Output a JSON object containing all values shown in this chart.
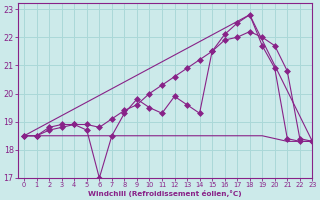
{
  "bg_color": "#cceaea",
  "grid_color": "#aad8d8",
  "line_color": "#882288",
  "title": "Windchill (Refroidissement éolien,°C)",
  "xlim": [
    -0.5,
    23
  ],
  "ylim": [
    17,
    23.2
  ],
  "yticks": [
    17,
    18,
    19,
    20,
    21,
    22,
    23
  ],
  "xticks": [
    0,
    1,
    2,
    3,
    4,
    5,
    6,
    7,
    8,
    9,
    10,
    11,
    12,
    13,
    14,
    15,
    16,
    17,
    18,
    19,
    20,
    21,
    22,
    23
  ],
  "series": [
    {
      "x": [
        0,
        1,
        2,
        3,
        4,
        5,
        6,
        7,
        8,
        9,
        10,
        11,
        12,
        13,
        14,
        15,
        16,
        17,
        18,
        19,
        20,
        21,
        22,
        23
      ],
      "y": [
        18.5,
        18.5,
        18.8,
        18.9,
        18.9,
        18.7,
        17.0,
        18.5,
        19.3,
        19.8,
        19.5,
        19.3,
        19.9,
        19.6,
        19.3,
        21.5,
        22.1,
        22.5,
        22.8,
        21.7,
        20.9,
        18.4,
        18.3,
        18.3
      ],
      "marker": "D",
      "markersize": 3
    },
    {
      "x": [
        0,
        1,
        2,
        3,
        4,
        5,
        6,
        7,
        8,
        9,
        10,
        11,
        12,
        13,
        14,
        15,
        16,
        17,
        18,
        19,
        20,
        21,
        22,
        23
      ],
      "y": [
        18.5,
        18.5,
        18.5,
        18.5,
        18.5,
        18.5,
        18.5,
        18.5,
        18.5,
        18.5,
        18.5,
        18.5,
        18.5,
        18.5,
        18.5,
        18.5,
        18.5,
        18.5,
        18.5,
        18.5,
        18.4,
        18.3,
        18.3,
        18.3
      ],
      "marker": null,
      "markersize": 0
    },
    {
      "x": [
        0,
        1,
        2,
        3,
        4,
        5,
        6,
        7,
        8,
        9,
        10,
        11,
        12,
        13,
        14,
        15,
        16,
        17,
        18,
        19,
        20,
        21,
        22,
        23
      ],
      "y": [
        18.5,
        18.5,
        18.7,
        18.8,
        18.9,
        18.9,
        18.8,
        19.1,
        19.4,
        19.6,
        20.0,
        20.3,
        20.6,
        20.9,
        21.2,
        21.5,
        21.9,
        22.0,
        22.2,
        22.0,
        21.7,
        20.8,
        18.4,
        18.3
      ],
      "marker": "D",
      "markersize": 3
    },
    {
      "x": [
        0,
        18,
        23
      ],
      "y": [
        18.5,
        22.8,
        18.3
      ],
      "marker": null,
      "markersize": 0
    }
  ]
}
